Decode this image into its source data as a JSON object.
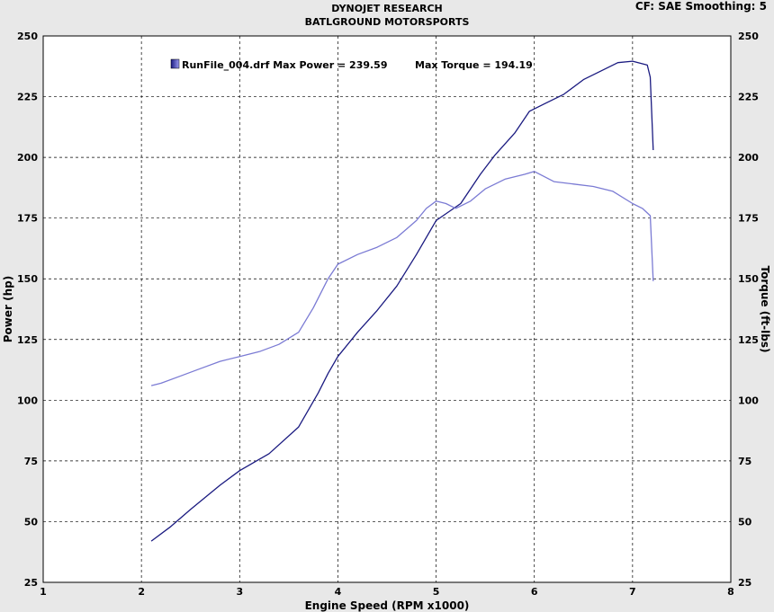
{
  "header": {
    "title_line1": "DYNOJET RESEARCH",
    "title_line2": "BATLGROUND MOTORSPORTS",
    "cf_info": "CF: SAE  Smoothing: 5"
  },
  "chart_data": {
    "type": "line",
    "xlabel": "Engine Speed (RPM x1000)",
    "ylabel": "Power (hp)",
    "y2label": "Torque (ft-lbs)",
    "xlim": [
      1,
      8
    ],
    "ylim": [
      25,
      250
    ],
    "y2lim": [
      25,
      250
    ],
    "x_ticks": [
      "1",
      "2",
      "3",
      "4",
      "5",
      "6",
      "7",
      "8"
    ],
    "y_ticks": [
      "25",
      "50",
      "75",
      "100",
      "125",
      "150",
      "175",
      "200",
      "225",
      "250"
    ],
    "grid": true,
    "legend": {
      "position": "top-left",
      "text": "RunFile_004.drf Max Power = 239.59",
      "text2": "Max Torque = 194.19",
      "swatch_color": "#2b2bb0"
    },
    "series": [
      {
        "name": "Power",
        "axis": "left",
        "color": "#1a1a80",
        "x": [
          2.1,
          2.3,
          2.5,
          2.8,
          3.0,
          3.3,
          3.6,
          3.8,
          3.9,
          4.0,
          4.2,
          4.4,
          4.6,
          4.8,
          5.0,
          5.25,
          5.45,
          5.6,
          5.8,
          5.95,
          6.1,
          6.3,
          6.5,
          6.7,
          6.85,
          7.0,
          7.15,
          7.18,
          7.21
        ],
        "y": [
          42,
          48,
          55,
          65,
          71,
          78,
          89,
          103,
          111,
          118,
          128,
          137,
          147,
          160,
          174,
          181,
          193,
          201,
          210,
          219,
          222,
          226,
          232,
          236,
          239,
          239.6,
          238,
          233,
          203
        ]
      },
      {
        "name": "Torque",
        "axis": "right",
        "color": "#7b7bd4",
        "x": [
          2.1,
          2.2,
          2.4,
          2.6,
          2.8,
          3.0,
          3.2,
          3.4,
          3.6,
          3.75,
          3.9,
          4.0,
          4.2,
          4.4,
          4.6,
          4.8,
          4.9,
          5.0,
          5.1,
          5.2,
          5.35,
          5.5,
          5.7,
          5.9,
          6.0,
          6.2,
          6.4,
          6.6,
          6.8,
          7.0,
          7.1,
          7.18,
          7.21
        ],
        "y": [
          106,
          107,
          110,
          113,
          116,
          118,
          120,
          123,
          128,
          138,
          150,
          156,
          160,
          163,
          167,
          174,
          179,
          182,
          181,
          179,
          182,
          187,
          191,
          193,
          194.2,
          190,
          189,
          188,
          186,
          181,
          179,
          176,
          149
        ]
      }
    ]
  }
}
